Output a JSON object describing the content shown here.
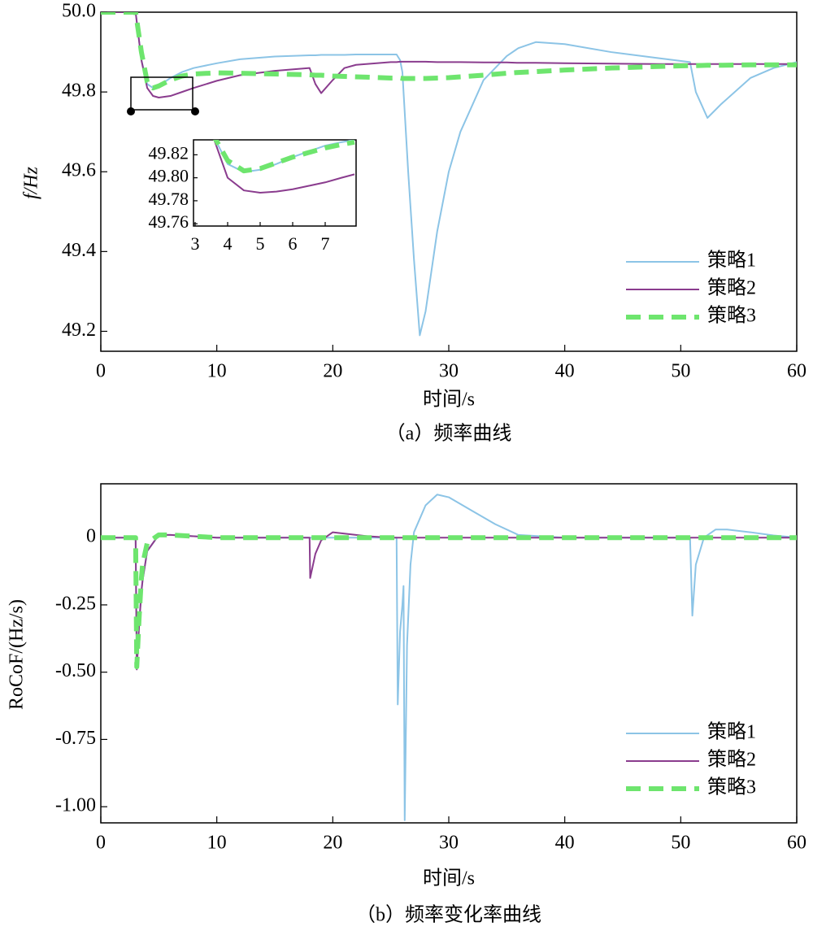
{
  "chart_data": [
    {
      "type": "line",
      "ylabel": "f/Hz",
      "xlabel": "时间/s",
      "caption": "（a）频率曲线",
      "xlim": [
        0,
        60
      ],
      "xticks": [
        0,
        10,
        20,
        30,
        40,
        50,
        60
      ],
      "ylim": [
        49.15,
        50.0
      ],
      "yticks": [
        49.2,
        49.4,
        49.6,
        49.8,
        {
          "value": 50.0,
          "label": "50.0"
        }
      ],
      "legend": "lower right",
      "x": [
        0,
        3,
        3.5,
        4,
        4.5,
        5,
        6,
        7,
        8,
        10,
        12,
        15,
        18,
        18.5,
        19,
        20,
        21,
        22,
        25,
        25.5,
        25.8,
        26,
        26.5,
        27,
        27.5,
        28,
        29,
        30,
        31,
        33,
        35,
        36,
        37.5,
        40,
        44,
        48,
        50.8,
        51.3,
        52.3,
        53.5,
        56,
        58,
        60
      ],
      "series": [
        {
          "name": "策略1",
          "color": "#8cc4e6",
          "line_style": "solid",
          "values": [
            50.0,
            50.0,
            49.88,
            49.82,
            49.81,
            49.815,
            49.835,
            49.85,
            49.86,
            49.872,
            49.882,
            49.889,
            49.892,
            49.892,
            49.893,
            49.893,
            49.893,
            49.894,
            49.894,
            49.894,
            49.88,
            49.85,
            49.6,
            49.38,
            49.19,
            49.25,
            49.45,
            49.6,
            49.7,
            49.83,
            49.89,
            49.91,
            49.925,
            49.92,
            49.9,
            49.885,
            49.875,
            49.8,
            49.735,
            49.77,
            49.835,
            49.86,
            49.875
          ]
        },
        {
          "name": "策略2",
          "color": "#8a3c8e",
          "line_style": "solid",
          "values": [
            50.0,
            50.0,
            49.88,
            49.81,
            49.79,
            49.786,
            49.79,
            49.8,
            49.81,
            49.828,
            49.842,
            49.853,
            49.86,
            49.82,
            49.797,
            49.83,
            49.86,
            49.868,
            49.875,
            49.875,
            49.876,
            49.876,
            49.876,
            49.876,
            49.876,
            49.876,
            49.875,
            49.875,
            49.875,
            49.874,
            49.874,
            49.873,
            49.873,
            49.872,
            49.871,
            49.87,
            49.87,
            49.87,
            49.87,
            49.87,
            49.87,
            49.87,
            49.87
          ]
        },
        {
          "name": "策略3",
          "color": "#6ee56e",
          "line_style": "dashed",
          "values": [
            50.0,
            50.0,
            49.9,
            49.825,
            49.81,
            49.815,
            49.83,
            49.84,
            49.845,
            49.848,
            49.847,
            49.845,
            49.843,
            49.842,
            49.842,
            49.84,
            49.839,
            49.838,
            49.835,
            49.835,
            49.835,
            49.834,
            49.834,
            49.834,
            49.834,
            49.834,
            49.835,
            49.836,
            49.838,
            49.842,
            49.847,
            49.849,
            49.851,
            49.855,
            49.86,
            49.864,
            49.866,
            49.866,
            49.867,
            49.867,
            49.868,
            49.868,
            49.868
          ]
        }
      ]
    },
    {
      "type": "line",
      "xlim": [
        2.95,
        7.95
      ],
      "xticks": [
        3,
        4,
        5,
        6,
        7
      ],
      "ylim": [
        49.758,
        49.833
      ],
      "yticks": [
        49.76,
        49.78,
        {
          "value": 49.8,
          "label": "49.80"
        },
        49.82
      ],
      "x": [
        3.5,
        4,
        4.5,
        5,
        5.5,
        6,
        6.5,
        7,
        7.5,
        7.9
      ],
      "series": [
        {
          "color": "#8cc4e6",
          "line_style": "solid",
          "values": [
            49.84,
            49.812,
            49.805,
            49.807,
            49.812,
            49.818,
            49.823,
            49.828,
            49.831,
            49.833
          ]
        },
        {
          "color": "#8a3c8e",
          "line_style": "solid",
          "values": [
            49.84,
            49.8,
            49.789,
            49.787,
            49.788,
            49.79,
            49.793,
            49.796,
            49.8,
            49.803
          ]
        },
        {
          "color": "#6ee56e",
          "line_style": "dashed",
          "values": [
            49.84,
            49.815,
            49.806,
            49.808,
            49.813,
            49.818,
            49.822,
            49.826,
            49.829,
            49.831
          ]
        }
      ]
    },
    {
      "type": "line",
      "ylabel": "RoCoF/(Hz/s)",
      "xlabel": "时间/s",
      "caption": "（b）频率变化率曲线",
      "xlim": [
        0,
        60
      ],
      "xticks": [
        0,
        10,
        20,
        30,
        40,
        50,
        60
      ],
      "ylim": [
        -1.06,
        0.2
      ],
      "yticks": [
        {
          "value": -1,
          "label": "-1.00"
        },
        -0.75,
        {
          "value": -0.5,
          "label": "-0.50"
        },
        -0.25,
        0
      ],
      "legend": "lower right",
      "x": [
        0,
        3,
        3.1,
        3.3,
        3.5,
        3.6,
        4,
        5,
        6,
        8,
        10,
        18,
        18.05,
        18.5,
        19,
        20,
        21,
        23,
        25,
        25.5,
        25.6,
        25.8,
        26,
        26.1,
        26.2,
        26.4,
        26.7,
        27,
        28,
        29,
        30,
        32,
        34,
        36,
        40,
        50.8,
        51,
        51.3,
        52,
        53,
        54,
        56,
        58,
        60
      ],
      "series": [
        {
          "name": "策略1",
          "color": "#8cc4e6",
          "line_style": "solid",
          "values": [
            0,
            0,
            -0.45,
            -0.32,
            -0.2,
            -0.16,
            -0.05,
            0.01,
            0.01,
            0.005,
            0,
            0,
            0,
            0,
            0,
            0,
            0,
            0,
            0,
            0,
            -0.62,
            -0.35,
            -0.25,
            -0.18,
            -1.05,
            -0.4,
            -0.1,
            0.02,
            0.12,
            0.16,
            0.15,
            0.1,
            0.05,
            0.01,
            0,
            0,
            -0.29,
            -0.1,
            0,
            0.03,
            0.03,
            0.02,
            0.008,
            0
          ]
        },
        {
          "name": "策略2",
          "color": "#8a3c8e",
          "line_style": "solid",
          "values": [
            0,
            0,
            -0.49,
            -0.33,
            -0.2,
            -0.16,
            -0.05,
            0.01,
            0.01,
            0.005,
            0,
            0,
            -0.15,
            -0.06,
            -0.01,
            0.02,
            0.015,
            0.005,
            0,
            0,
            0,
            0,
            0,
            0,
            0,
            0,
            0,
            0,
            0,
            0,
            0,
            0,
            0,
            0,
            0,
            0,
            0,
            0,
            0,
            0,
            0,
            0,
            0,
            0
          ]
        },
        {
          "name": "策略3",
          "color": "#6ee56e",
          "line_style": "dashed",
          "values": [
            0,
            0,
            -0.48,
            -0.3,
            -0.15,
            -0.1,
            -0.02,
            0.01,
            0.01,
            0.005,
            0,
            0,
            0,
            0,
            0,
            0,
            0,
            0,
            0,
            0,
            0,
            0,
            0,
            0,
            0,
            0,
            0,
            0,
            0,
            0,
            0,
            0,
            0,
            0,
            0,
            0,
            0,
            0,
            0,
            0,
            0,
            0,
            0,
            0
          ]
        }
      ]
    }
  ]
}
